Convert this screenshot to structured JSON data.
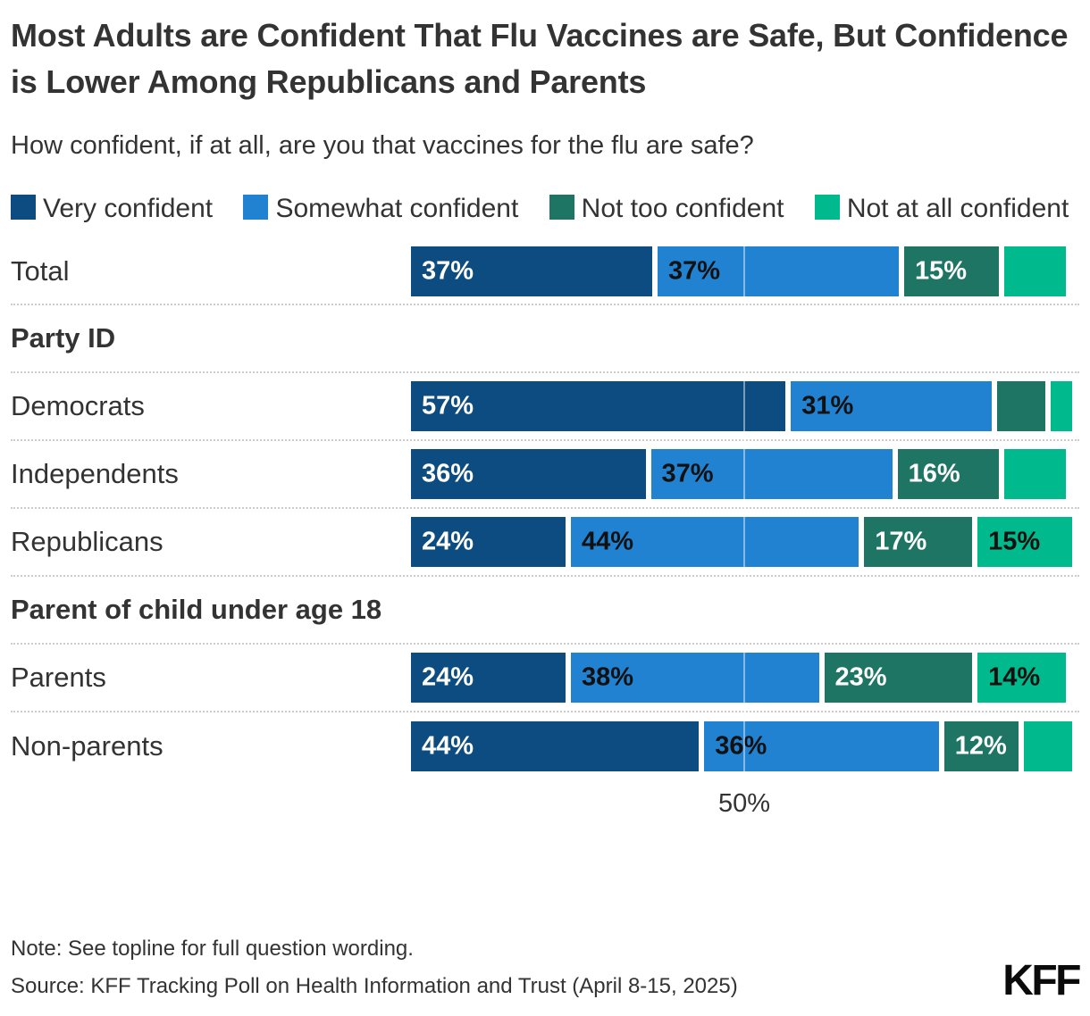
{
  "title": "Most Adults are Confident That Flu Vaccines are Safe, But Confidence is Lower Among Republicans and Parents",
  "subtitle": "How confident, if at all, are you that vaccines for the flu are safe?",
  "legend": {
    "items": [
      {
        "label": "Very confident",
        "color": "#0d4c80"
      },
      {
        "label": "Somewhat confident",
        "color": "#2182d2"
      },
      {
        "label": "Not too confident",
        "color": "#1e7564"
      },
      {
        "label": "Not at all confident",
        "color": "#00b98c"
      }
    ]
  },
  "chart_data": {
    "type": "bar",
    "stacked": true,
    "orientation": "horizontal",
    "unit": "percent",
    "series": [
      "Very confident",
      "Somewhat confident",
      "Not too confident",
      "Not at all confident"
    ],
    "colors": [
      "#0d4c80",
      "#2182d2",
      "#1e7564",
      "#00b98c"
    ],
    "label_text_colors": [
      "#ffffff",
      "#111111",
      "#ffffff",
      "#111111"
    ],
    "x_axis": {
      "min": 0,
      "max": 100,
      "ticks": [
        {
          "value": 50,
          "label": "50%"
        }
      ],
      "gridline_at": 50
    },
    "groups": [
      {
        "header": "",
        "rows": [
          {
            "label": "Total",
            "values": [
              37,
              37,
              15,
              10
            ],
            "segment_labels": [
              "37%",
              "37%",
              "15%",
              ""
            ]
          }
        ]
      },
      {
        "header": "Party ID",
        "rows": [
          {
            "label": "Democrats",
            "values": [
              57,
              31,
              8,
              4
            ],
            "segment_labels": [
              "57%",
              "31%",
              "",
              ""
            ]
          },
          {
            "label": "Independents",
            "values": [
              36,
              37,
              16,
              10
            ],
            "segment_labels": [
              "36%",
              "37%",
              "16%",
              ""
            ]
          },
          {
            "label": "Republicans",
            "values": [
              24,
              44,
              17,
              15
            ],
            "segment_labels": [
              "24%",
              "44%",
              "17%",
              "15%"
            ]
          }
        ]
      },
      {
        "header": "Parent of child under age 18",
        "rows": [
          {
            "label": "Parents",
            "values": [
              24,
              38,
              23,
              14
            ],
            "segment_labels": [
              "24%",
              "38%",
              "23%",
              "14%"
            ]
          },
          {
            "label": "Non-parents",
            "values": [
              44,
              36,
              12,
              8
            ],
            "segment_labels": [
              "44%",
              "36%",
              "12%",
              ""
            ]
          }
        ]
      }
    ]
  },
  "footer": {
    "note": "Note: See topline for full question wording.",
    "source": "Source: KFF Tracking Poll on Health Information and Trust (April 8-15, 2025)",
    "logo": "KFF"
  }
}
